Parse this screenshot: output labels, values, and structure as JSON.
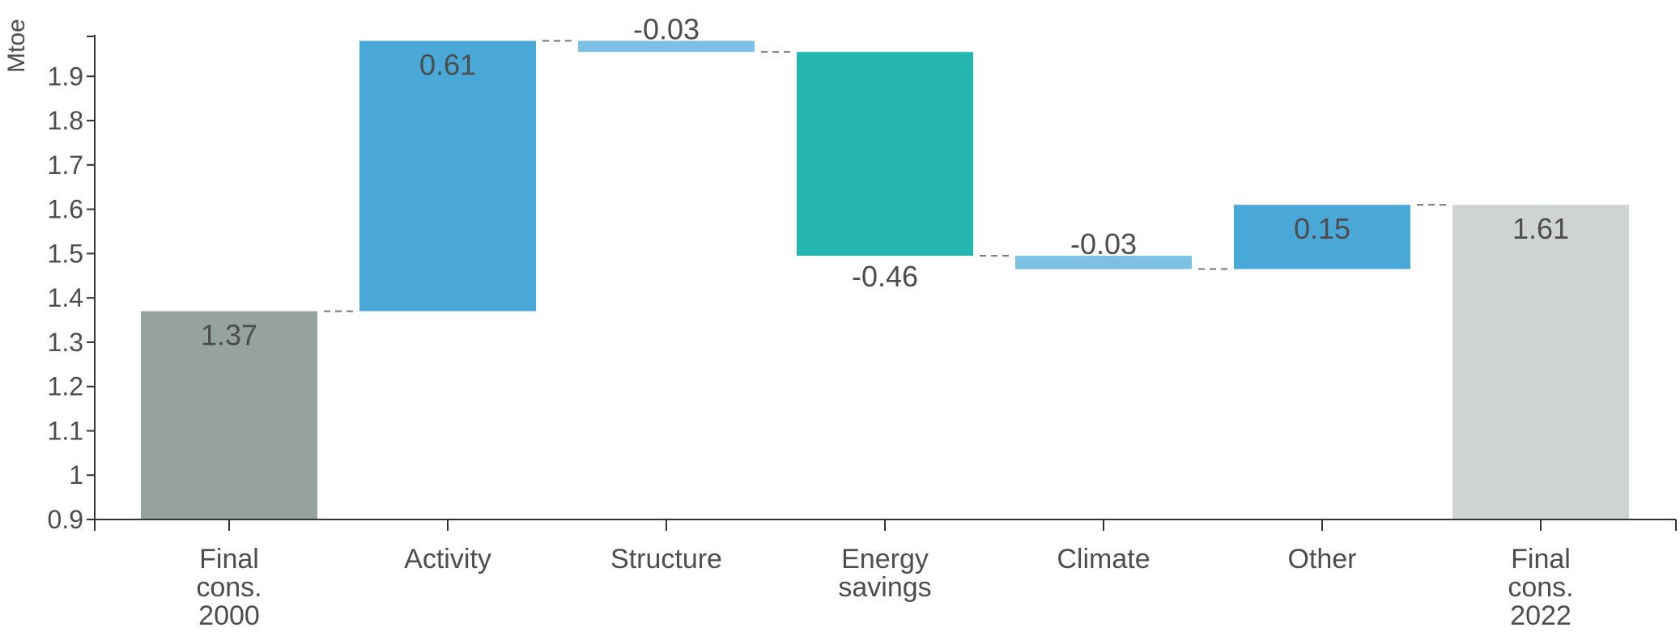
{
  "chart_data": {
    "type": "bar",
    "subtype": "waterfall",
    "ylabel": "Mtoe",
    "ylim": [
      0.9,
      1.99
    ],
    "yticks": [
      "0.9",
      "1",
      "1.1",
      "1.2",
      "1.3",
      "1.4",
      "1.5",
      "1.6",
      "1.7",
      "1.8",
      "1.9"
    ],
    "ytick_values": [
      0.9,
      1.0,
      1.1,
      1.2,
      1.3,
      1.4,
      1.5,
      1.6,
      1.7,
      1.8,
      1.9
    ],
    "categories": [
      [
        "Final",
        "cons.",
        "2000"
      ],
      [
        "Activity"
      ],
      [
        "Structure"
      ],
      [
        "Energy",
        "savings"
      ],
      [
        "Climate"
      ],
      [
        "Other"
      ],
      [
        "Final",
        "cons.",
        "2022"
      ]
    ],
    "bars": [
      {
        "kind": "total",
        "start": 0.9,
        "end": 1.37,
        "label": "1.37",
        "color": "#95a39c"
      },
      {
        "kind": "delta",
        "start": 1.37,
        "end": 1.98,
        "label": "0.61",
        "color": "#4aa8d8"
      },
      {
        "kind": "delta",
        "start": 1.98,
        "end": 1.955,
        "label": "-0.03",
        "color": "#7cc0e3"
      },
      {
        "kind": "delta",
        "start": 1.955,
        "end": 1.495,
        "label": "-0.46",
        "color": "#25b6b1"
      },
      {
        "kind": "delta",
        "start": 1.495,
        "end": 1.465,
        "label": "-0.03",
        "color": "#7cc0e3"
      },
      {
        "kind": "delta",
        "start": 1.465,
        "end": 1.61,
        "label": "0.15",
        "color": "#4aa8d8"
      },
      {
        "kind": "total",
        "start": 0.9,
        "end": 1.61,
        "label": "1.61",
        "color": "#cfd4d2"
      }
    ],
    "connectors": true,
    "grid": false,
    "legend": "none"
  }
}
